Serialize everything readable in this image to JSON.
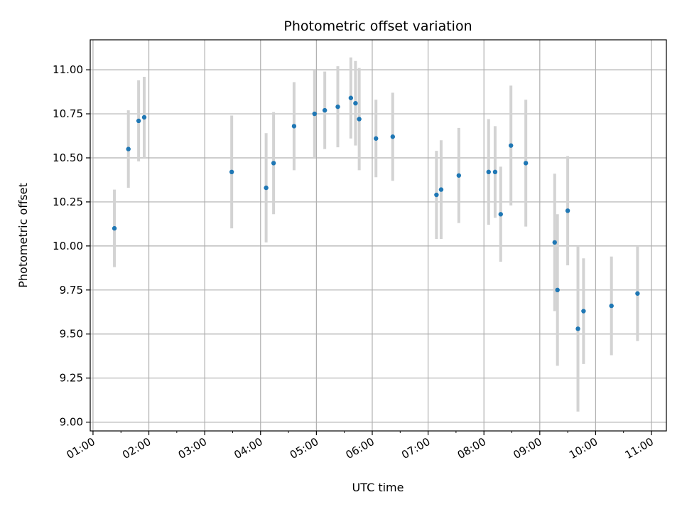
{
  "chart_data": {
    "type": "scatter",
    "title": "Photometric offset variation",
    "xlabel": "UTC time",
    "ylabel": "Photometric offset",
    "x_ticks": [
      "01:00",
      "02:00",
      "03:00",
      "04:00",
      "05:00",
      "06:00",
      "07:00",
      "08:00",
      "09:00",
      "10:00",
      "11:00"
    ],
    "y_ticks": [
      "9.00",
      "9.25",
      "9.50",
      "9.75",
      "10.00",
      "10.25",
      "10.50",
      "10.75",
      "11.00"
    ],
    "xlim": [
      "00:57",
      "11:16"
    ],
    "ylim": [
      8.95,
      11.17
    ],
    "grid": true,
    "colors": {
      "point": "#1f77b4",
      "errorbar": "#d3d3d3",
      "grid": "#b0b0b0"
    },
    "points": [
      {
        "t": "01:23",
        "y": 10.1,
        "err": 0.22
      },
      {
        "t": "01:38",
        "y": 10.55,
        "err": 0.22
      },
      {
        "t": "01:49",
        "y": 10.71,
        "err": 0.23
      },
      {
        "t": "01:55",
        "y": 10.73,
        "err": 0.23
      },
      {
        "t": "03:29",
        "y": 10.42,
        "err": 0.32
      },
      {
        "t": "04:06",
        "y": 10.33,
        "err": 0.31
      },
      {
        "t": "04:14",
        "y": 10.47,
        "err": 0.29
      },
      {
        "t": "04:36",
        "y": 10.68,
        "err": 0.25
      },
      {
        "t": "04:58",
        "y": 10.75,
        "err": 0.25
      },
      {
        "t": "05:09",
        "y": 10.77,
        "err": 0.22
      },
      {
        "t": "05:23",
        "y": 10.79,
        "err": 0.23
      },
      {
        "t": "05:37",
        "y": 10.84,
        "err": 0.23
      },
      {
        "t": "05:42",
        "y": 10.81,
        "err": 0.24
      },
      {
        "t": "05:46",
        "y": 10.72,
        "err": 0.29
      },
      {
        "t": "06:04",
        "y": 10.61,
        "err": 0.22
      },
      {
        "t": "06:22",
        "y": 10.62,
        "err": 0.25
      },
      {
        "t": "07:09",
        "y": 10.29,
        "err": 0.25
      },
      {
        "t": "07:14",
        "y": 10.32,
        "err": 0.28
      },
      {
        "t": "07:33",
        "y": 10.4,
        "err": 0.27
      },
      {
        "t": "08:05",
        "y": 10.42,
        "err": 0.3
      },
      {
        "t": "08:12",
        "y": 10.42,
        "err": 0.26
      },
      {
        "t": "08:18",
        "y": 10.18,
        "err": 0.27
      },
      {
        "t": "08:29",
        "y": 10.57,
        "err": 0.34
      },
      {
        "t": "08:45",
        "y": 10.47,
        "err": 0.36
      },
      {
        "t": "09:16",
        "y": 10.02,
        "err": 0.39
      },
      {
        "t": "09:19",
        "y": 9.75,
        "err": 0.43
      },
      {
        "t": "09:30",
        "y": 10.2,
        "err": 0.31
      },
      {
        "t": "09:41",
        "y": 9.53,
        "err": 0.47
      },
      {
        "t": "09:47",
        "y": 9.63,
        "err": 0.3
      },
      {
        "t": "10:17",
        "y": 9.66,
        "err": 0.28
      },
      {
        "t": "10:45",
        "y": 9.73,
        "err": 0.27
      }
    ]
  }
}
